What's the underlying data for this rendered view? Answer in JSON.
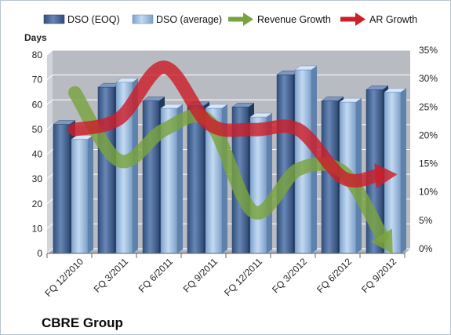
{
  "chart_data": {
    "type": "bar",
    "company": "CBRE Group",
    "y_title_left": "Days",
    "categories": [
      "FQ 12/2010",
      "FQ 3/2011",
      "FQ 6/2011",
      "FQ 9/2011",
      "FQ 12/2011",
      "FQ 3/2012",
      "FQ 6/2012",
      "FQ 9/2012"
    ],
    "series": [
      {
        "name": "DSO (EOQ)",
        "kind": "bar",
        "axis": "left",
        "color": "#4f6fa0",
        "values": [
          52,
          67,
          61.5,
          59.5,
          59,
          72,
          61.5,
          66
        ]
      },
      {
        "name": "DSO (average)",
        "kind": "bar",
        "axis": "left",
        "color": "#9fbfe0",
        "values": [
          46,
          69,
          58.5,
          58.5,
          55,
          74,
          61,
          65
        ]
      },
      {
        "name": "Revenue Growth",
        "kind": "arrow-line",
        "axis": "right",
        "color": "#7aa33e",
        "values": [
          27.5,
          15.5,
          21,
          22.5,
          6.5,
          14,
          13.5,
          0.5
        ]
      },
      {
        "name": "AR Growth",
        "kind": "arrow-line",
        "axis": "right",
        "color": "#cc1f2a",
        "values": [
          21,
          23,
          32,
          22,
          21,
          21,
          12.5,
          13
        ]
      }
    ],
    "y_left": {
      "min": 0,
      "max": 80,
      "ticks": [
        "0",
        "10",
        "20",
        "30",
        "40",
        "50",
        "60",
        "70",
        "80"
      ]
    },
    "y_right": {
      "min": 0,
      "max": 35,
      "ticks": [
        "0%",
        "5%",
        "10%",
        "15%",
        "20%",
        "25%",
        "30%",
        "35%"
      ]
    },
    "grid": true,
    "legend_position": "top"
  }
}
